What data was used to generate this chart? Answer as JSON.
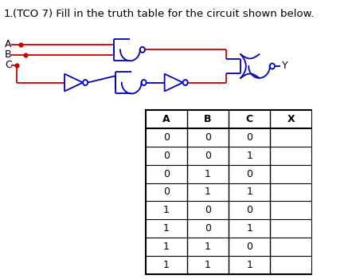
{
  "title_num": "1.",
  "title_text": "(TCO 7) Fill in the truth table for the circuit shown below.",
  "title_fontsize": 9.5,
  "table_headers": [
    "A",
    "B",
    "C",
    "X"
  ],
  "table_rows": [
    [
      "0",
      "0",
      "0",
      ""
    ],
    [
      "0",
      "0",
      "1",
      ""
    ],
    [
      "0",
      "1",
      "0",
      ""
    ],
    [
      "0",
      "1",
      "1",
      ""
    ],
    [
      "1",
      "0",
      "0",
      ""
    ],
    [
      "1",
      "0",
      "1",
      ""
    ],
    [
      "1",
      "1",
      "0",
      ""
    ],
    [
      "1",
      "1",
      "1",
      ""
    ]
  ],
  "background_color": "#ffffff",
  "text_color": "#000000",
  "red": "#cc0000",
  "blue": "#0000bb"
}
